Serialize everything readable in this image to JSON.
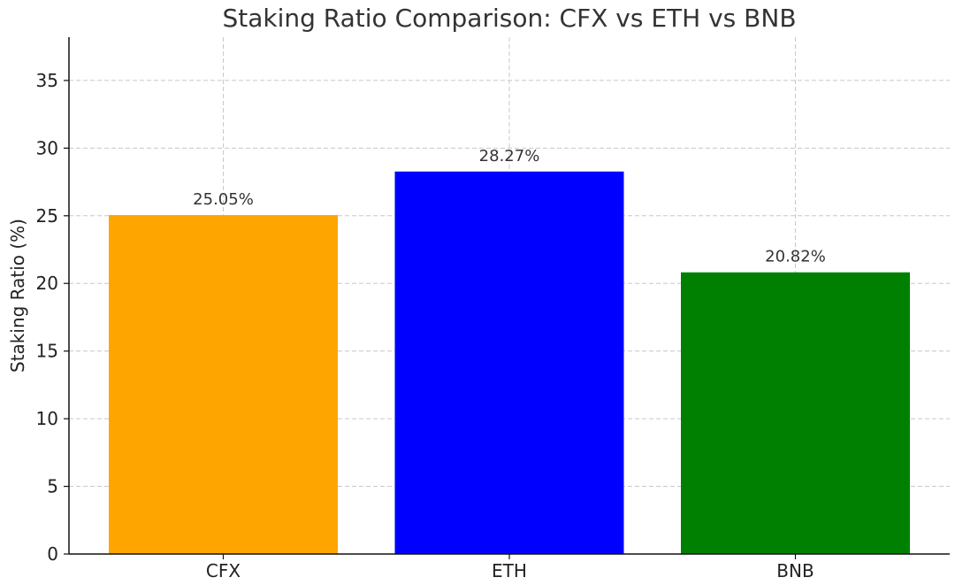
{
  "chart_data": {
    "type": "bar",
    "title": "Staking Ratio Comparison: CFX vs ETH vs BNB",
    "xlabel": "",
    "ylabel": "Staking Ratio (%)",
    "categories": [
      "CFX",
      "ETH",
      "BNB"
    ],
    "values": [
      25.05,
      28.27,
      20.82
    ],
    "data_labels": [
      "25.05%",
      "28.27%",
      "20.82%"
    ],
    "colors": [
      "#ffa500",
      "#0000ff",
      "#008000"
    ],
    "ylim": [
      0,
      38.2
    ],
    "yticks": [
      0,
      5,
      10,
      15,
      20,
      25,
      30,
      35
    ],
    "ytick_labels": [
      "0",
      "5",
      "10",
      "15",
      "20",
      "25",
      "30",
      "35"
    ],
    "grid": true,
    "legend": "none"
  }
}
